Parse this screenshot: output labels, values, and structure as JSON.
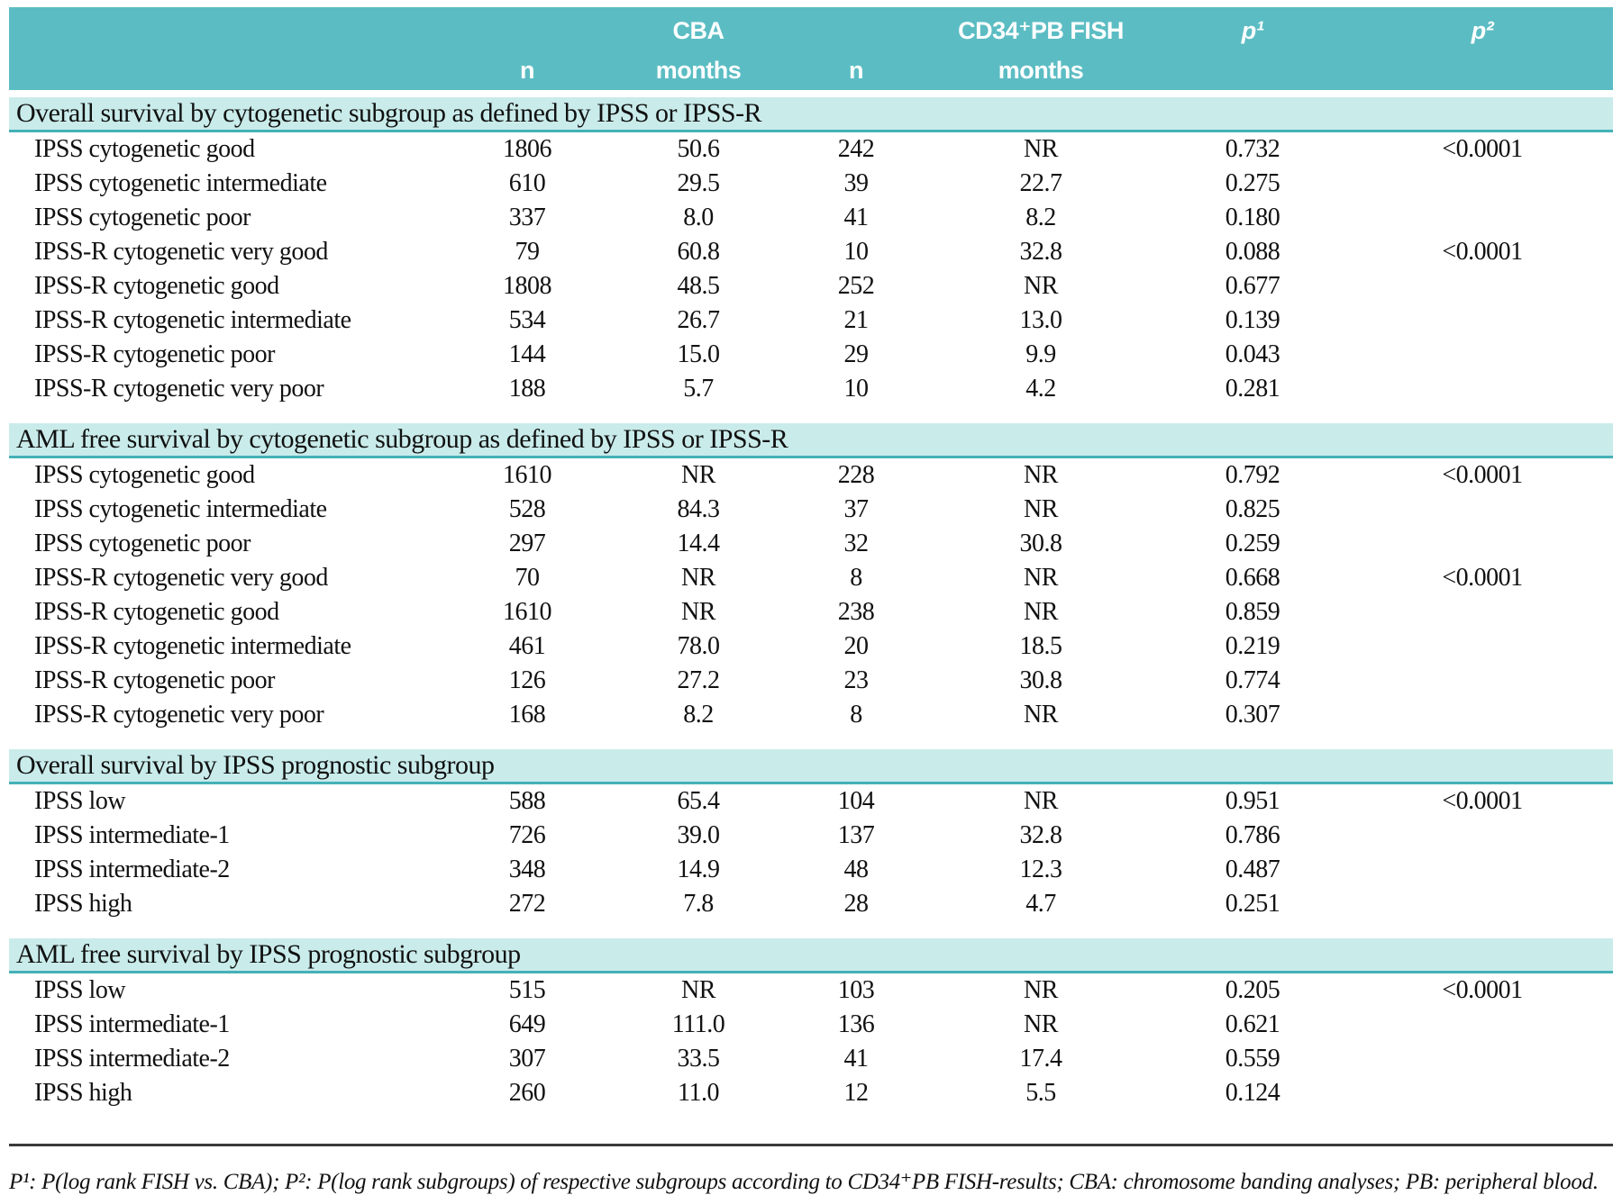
{
  "colors": {
    "header_bg": "#5bbdc3",
    "band_bg": "#c9eceb",
    "band_border": "#45b1b7",
    "header_text": "#ffffff",
    "body_text": "#111111",
    "divider": "#3a3a3a"
  },
  "header": {
    "columns": [
      {
        "top": "",
        "bottom": ""
      },
      {
        "top": "",
        "bottom": "n"
      },
      {
        "top": "CBA",
        "bottom": "months"
      },
      {
        "top": "",
        "bottom": "n"
      },
      {
        "top": "CD34⁺PB FISH",
        "bottom": "months"
      },
      {
        "top": "p¹",
        "bottom": ""
      },
      {
        "top": "p²",
        "bottom": ""
      }
    ]
  },
  "sections": [
    {
      "title": "Overall survival by cytogenetic subgroup as defined by IPSS or IPSS-R",
      "rows": [
        [
          "IPSS cytogenetic good",
          "1806",
          "50.6",
          "242",
          "NR",
          "0.732",
          "<0.0001"
        ],
        [
          "IPSS cytogenetic intermediate",
          "610",
          "29.5",
          "39",
          "22.7",
          "0.275",
          ""
        ],
        [
          "IPSS cytogenetic poor",
          "337",
          "8.0",
          "41",
          "8.2",
          "0.180",
          ""
        ],
        [
          "IPSS-R cytogenetic very good",
          "79",
          "60.8",
          "10",
          "32.8",
          "0.088",
          "<0.0001"
        ],
        [
          "IPSS-R cytogenetic good",
          "1808",
          "48.5",
          "252",
          "NR",
          "0.677",
          ""
        ],
        [
          "IPSS-R cytogenetic intermediate",
          "534",
          "26.7",
          "21",
          "13.0",
          "0.139",
          ""
        ],
        [
          "IPSS-R cytogenetic poor",
          "144",
          "15.0",
          "29",
          "9.9",
          "0.043",
          ""
        ],
        [
          "IPSS-R cytogenetic very poor",
          "188",
          "5.7",
          "10",
          "4.2",
          "0.281",
          ""
        ]
      ]
    },
    {
      "title": "AML free survival by cytogenetic subgroup as defined by IPSS or IPSS-R",
      "rows": [
        [
          "IPSS cytogenetic good",
          "1610",
          "NR",
          "228",
          "NR",
          "0.792",
          "<0.0001"
        ],
        [
          "IPSS cytogenetic intermediate",
          "528",
          "84.3",
          "37",
          "NR",
          "0.825",
          ""
        ],
        [
          "IPSS cytogenetic poor",
          "297",
          "14.4",
          "32",
          "30.8",
          "0.259",
          ""
        ],
        [
          "IPSS-R cytogenetic very good",
          "70",
          "NR",
          "8",
          "NR",
          "0.668",
          "<0.0001"
        ],
        [
          "IPSS-R cytogenetic good",
          "1610",
          "NR",
          "238",
          "NR",
          "0.859",
          ""
        ],
        [
          "IPSS-R cytogenetic intermediate",
          "461",
          "78.0",
          "20",
          "18.5",
          "0.219",
          ""
        ],
        [
          "IPSS-R cytogenetic poor",
          "126",
          "27.2",
          "23",
          "30.8",
          "0.774",
          ""
        ],
        [
          "IPSS-R cytogenetic very poor",
          "168",
          "8.2",
          "8",
          "NR",
          "0.307",
          ""
        ]
      ]
    },
    {
      "title": "Overall survival by IPSS prognostic subgroup",
      "rows": [
        [
          "IPSS low",
          "588",
          "65.4",
          "104",
          "NR",
          "0.951",
          "<0.0001"
        ],
        [
          "IPSS intermediate-1",
          "726",
          "39.0",
          "137",
          "32.8",
          "0.786",
          ""
        ],
        [
          "IPSS intermediate-2",
          "348",
          "14.9",
          "48",
          "12.3",
          "0.487",
          ""
        ],
        [
          "IPSS high",
          "272",
          "7.8",
          "28",
          "4.7",
          "0.251",
          ""
        ]
      ]
    },
    {
      "title": "AML free survival by IPSS prognostic subgroup",
      "rows": [
        [
          "IPSS low",
          "515",
          "NR",
          "103",
          "NR",
          "0.205",
          "<0.0001"
        ],
        [
          "IPSS intermediate-1",
          "649",
          "111.0",
          "136",
          "NR",
          "0.621",
          ""
        ],
        [
          "IPSS intermediate-2",
          "307",
          "33.5",
          "41",
          "17.4",
          "0.559",
          ""
        ],
        [
          "IPSS high",
          "260",
          "11.0",
          "12",
          "5.5",
          "0.124",
          ""
        ]
      ]
    }
  ],
  "footnote": "P¹: P(log rank FISH vs. CBA); P²: P(log rank subgroups) of respective subgroups according to CD34⁺PB FISH-results; CBA: chromosome banding analyses; PB: peripheral blood."
}
